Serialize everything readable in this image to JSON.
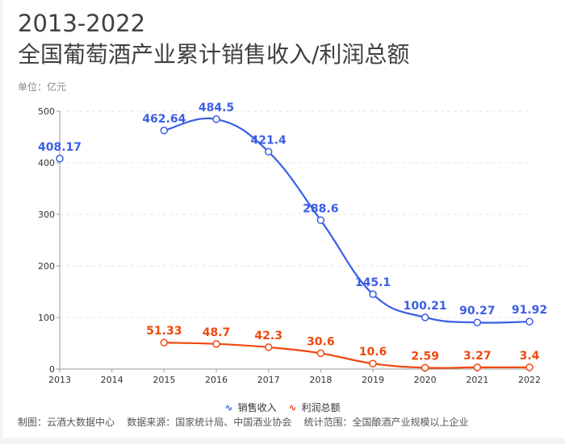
{
  "title_line1": "2013-2022",
  "title_line2": "全国葡萄酒产业累计销售收入/利润总额",
  "unit": "单位：亿元",
  "footer": "制图：云酒大数据中心    数据来源：国家统计局、中国酒业协会    统计范围：全国酿酒产业规模以上企业",
  "chart_data": {
    "type": "line",
    "title": "2013-2022 全国葡萄酒产业累计销售收入/利润总额",
    "ylabel": "单位：亿元",
    "x": [
      "2013",
      "2014",
      "2015",
      "2016",
      "2017",
      "2018",
      "2019",
      "2020",
      "2021",
      "2022"
    ],
    "ylim": [
      0,
      500
    ],
    "yticks": [
      0,
      100,
      200,
      300,
      400,
      500
    ],
    "grid": true,
    "legend": "bottom",
    "series": [
      {
        "name": "销售收入",
        "color": "#3b5ee6",
        "values": [
          408.17,
          null,
          462.64,
          484.5,
          421.4,
          288.6,
          145.1,
          100.21,
          90.27,
          91.92
        ],
        "labels": [
          "408.17",
          null,
          "462.64",
          "484.5",
          "421.4",
          "288.6",
          "145.1",
          "100.21",
          "90.27",
          "91.92"
        ]
      },
      {
        "name": "利润总额",
        "color": "#f0480e",
        "values": [
          null,
          null,
          51.33,
          48.7,
          42.3,
          30.6,
          10.6,
          2.59,
          3.27,
          3.4
        ],
        "labels": [
          null,
          null,
          "51.33",
          "48.7",
          "42.3",
          "30.6",
          "10.6",
          "2.59",
          "3.27",
          "3.4"
        ]
      }
    ]
  }
}
